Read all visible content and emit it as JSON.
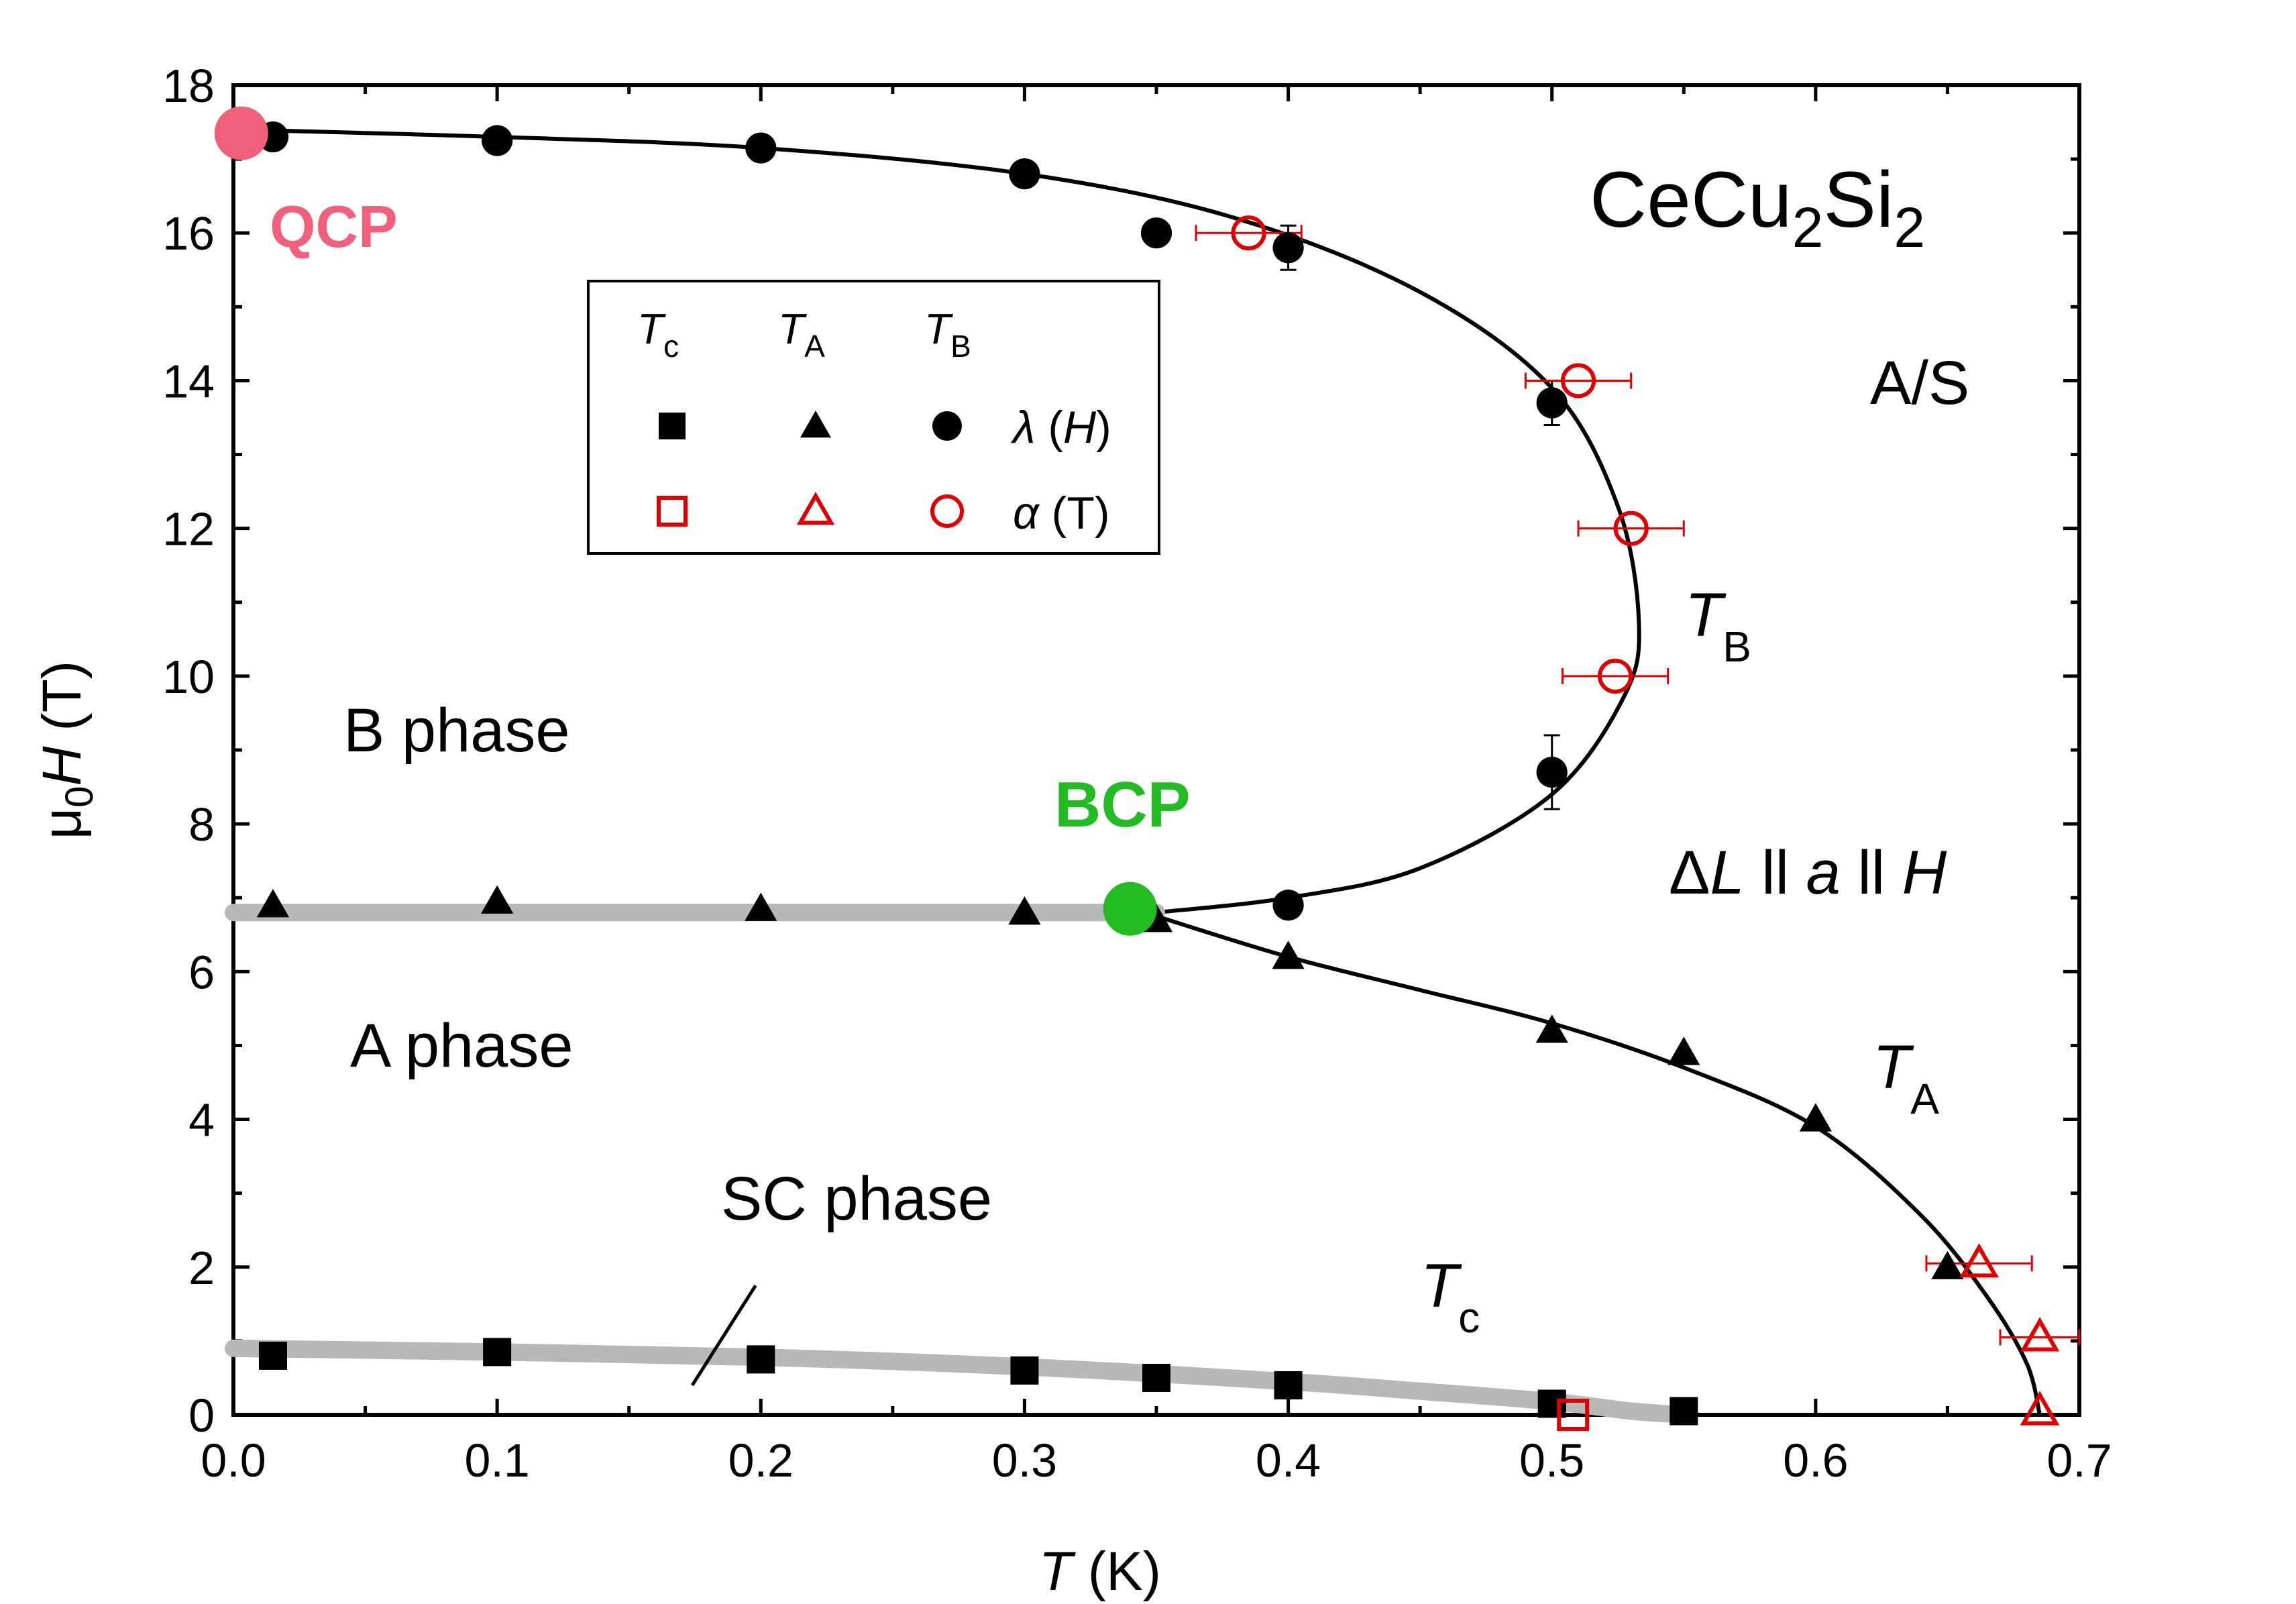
{
  "chart_data": {
    "type": "scatter",
    "title": "CeCu2Si2",
    "xlabel": "T (K)",
    "ylabel": "μ0H (T)",
    "xlim": [
      0.0,
      0.7
    ],
    "ylim": [
      0,
      18
    ],
    "x_ticks": [
      "0.0",
      "0.1",
      "0.2",
      "0.3",
      "0.4",
      "0.5",
      "0.6",
      "0.7"
    ],
    "y_ticks": [
      "0",
      "2",
      "4",
      "6",
      "8",
      "10",
      "12",
      "14",
      "16",
      "18"
    ],
    "grid": false,
    "legend": {
      "placement": "upper-left-center",
      "columns": [
        "Tc",
        "TA",
        "TB"
      ],
      "rows": [
        "λ (H)",
        "α (T)"
      ]
    },
    "annotations": {
      "qcp": "QCP",
      "bcp": "BCP",
      "as_label": "A/S",
      "config": "ΔL ll a ll H",
      "b_phase": "B phase",
      "a_phase": "A phase",
      "sc_phase": "SC phase",
      "tb_curve": "TB",
      "ta_curve": "TA",
      "tc_curve": "Tc"
    },
    "series": [
      {
        "name": "Tc λ(H)",
        "marker": "square",
        "filled": true,
        "color": "#000000",
        "x": [
          0.015,
          0.1,
          0.2,
          0.3,
          0.35,
          0.4,
          0.5,
          0.55
        ],
        "y": [
          0.8,
          0.85,
          0.75,
          0.6,
          0.5,
          0.4,
          0.15,
          0.05
        ]
      },
      {
        "name": "Tc α(T)",
        "marker": "square",
        "filled": false,
        "color": "#e00000",
        "x": [
          0.508
        ],
        "y": [
          0.0
        ]
      },
      {
        "name": "TA λ(H)",
        "marker": "triangle",
        "filled": true,
        "color": "#000000",
        "x": [
          0.015,
          0.1,
          0.2,
          0.3,
          0.35,
          0.4,
          0.5,
          0.55,
          0.6,
          0.65
        ],
        "y": [
          6.9,
          6.95,
          6.85,
          6.8,
          6.7,
          6.2,
          5.2,
          4.9,
          4.0,
          2.0
        ]
      },
      {
        "name": "TA α(T)",
        "marker": "triangle",
        "filled": false,
        "color": "#e00000",
        "x": [
          0.662,
          0.685,
          0.685
        ],
        "y": [
          2.05,
          1.05,
          0.05
        ],
        "xerr": [
          0.02,
          0.015,
          0.0
        ]
      },
      {
        "name": "TB λ(H)",
        "marker": "circle",
        "filled": true,
        "color": "#000000",
        "x": [
          0.015,
          0.1,
          0.2,
          0.3,
          0.35,
          0.4,
          0.5,
          0.5,
          0.4
        ],
        "y": [
          17.3,
          17.25,
          17.15,
          16.8,
          16.0,
          15.8,
          13.7,
          8.7,
          6.9
        ],
        "yerr": [
          0,
          0,
          0,
          0,
          0,
          0.3,
          0.3,
          0.5,
          0
        ]
      },
      {
        "name": "TB α(T)",
        "marker": "circle",
        "filled": false,
        "color": "#e00000",
        "x": [
          0.385,
          0.51,
          0.53,
          0.524
        ],
        "y": [
          16.0,
          14.0,
          12.0,
          10.0
        ],
        "xerr": [
          0.02,
          0.02,
          0.02,
          0.02
        ]
      }
    ],
    "curves": [
      {
        "name": "TB",
        "color": "#000000",
        "x": [
          0.0,
          0.1,
          0.2,
          0.3,
          0.38,
          0.45,
          0.5,
          0.525,
          0.533,
          0.527,
          0.5,
          0.45,
          0.4,
          0.35
        ],
        "y": [
          17.4,
          17.3,
          17.15,
          16.8,
          16.2,
          15.2,
          13.9,
          12.3,
          10.7,
          9.7,
          8.4,
          7.4,
          7.0,
          6.8
        ]
      },
      {
        "name": "TA",
        "color": "#000000",
        "x": [
          0.35,
          0.4,
          0.45,
          0.5,
          0.55,
          0.6,
          0.64,
          0.665,
          0.68,
          0.685
        ],
        "y": [
          6.75,
          6.2,
          5.75,
          5.3,
          4.7,
          3.9,
          2.7,
          1.6,
          0.7,
          0.0
        ]
      },
      {
        "name": "TA-low",
        "color": "#b8b8b8",
        "x": [
          0.0,
          0.35
        ],
        "y": [
          6.8,
          6.8
        ]
      },
      {
        "name": "Tc",
        "color": "#b8b8b8",
        "x": [
          0.0,
          0.1,
          0.2,
          0.3,
          0.4,
          0.45,
          0.5,
          0.53,
          0.55
        ],
        "y": [
          0.9,
          0.85,
          0.78,
          0.65,
          0.45,
          0.32,
          0.18,
          0.05,
          0.0
        ]
      }
    ],
    "special_points": [
      {
        "label": "QCP",
        "x": 0.003,
        "y": 17.35,
        "color": "#f0607a"
      },
      {
        "label": "BCP",
        "x": 0.34,
        "y": 6.85,
        "color": "#22bb22"
      }
    ]
  }
}
